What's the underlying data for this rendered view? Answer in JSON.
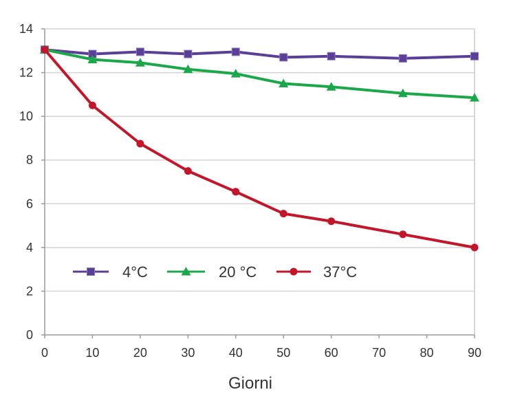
{
  "chart_data": {
    "type": "line",
    "title": "",
    "xlabel": "Giorni",
    "ylabel": "",
    "x_ticks": [
      0,
      10,
      20,
      30,
      40,
      50,
      60,
      70,
      80,
      90
    ],
    "y_ticks": [
      0,
      2,
      4,
      6,
      8,
      10,
      12,
      14
    ],
    "xlim": [
      0,
      90
    ],
    "ylim": [
      0,
      14
    ],
    "grid": "horizontal",
    "legend_position": "lower-left",
    "series": [
      {
        "name": "4°C",
        "color": "#5b3f96",
        "marker": "square",
        "x": [
          0,
          10,
          20,
          30,
          40,
          50,
          60,
          75,
          90
        ],
        "y": [
          13.05,
          12.85,
          12.95,
          12.85,
          12.95,
          12.7,
          12.75,
          12.65,
          12.75
        ]
      },
      {
        "name": "20 °C",
        "color": "#1aa84a",
        "marker": "triangle",
        "x": [
          0,
          10,
          20,
          30,
          40,
          50,
          60,
          75,
          90
        ],
        "y": [
          13.05,
          12.6,
          12.45,
          12.15,
          11.95,
          11.5,
          11.35,
          11.05,
          10.85
        ]
      },
      {
        "name": "37°C",
        "color": "#c4162a",
        "marker": "circle",
        "x": [
          0,
          10,
          20,
          30,
          40,
          50,
          60,
          75,
          90
        ],
        "y": [
          13.05,
          10.5,
          8.75,
          7.5,
          6.55,
          5.55,
          5.2,
          4.6,
          4.0
        ]
      }
    ]
  }
}
